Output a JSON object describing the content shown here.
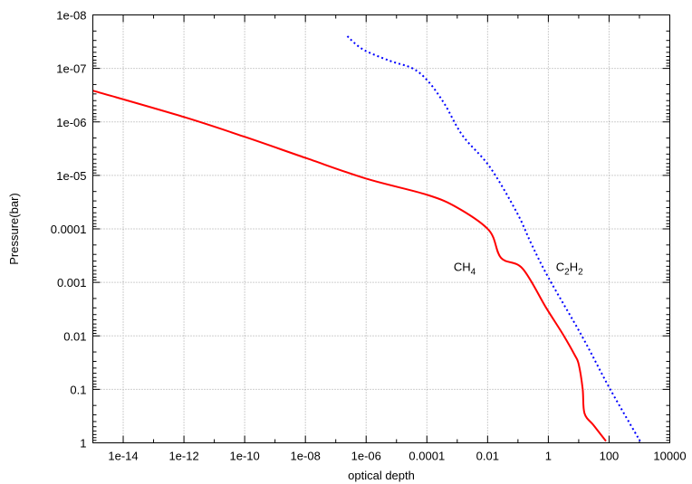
{
  "chart_data": {
    "type": "line",
    "title": "",
    "xlabel": "optical depth",
    "ylabel": "Pressure(bar)",
    "xscale": "log",
    "yscale": "log",
    "xlim": [
      1e-15,
      10000
    ],
    "ylim": [
      1e-08,
      1
    ],
    "y_inverted": true,
    "grid": true,
    "x_ticks": [
      1e-14,
      1e-12,
      1e-10,
      1e-08,
      1e-06,
      0.0001,
      0.01,
      1,
      100,
      10000
    ],
    "x_tick_labels": [
      "1e-14",
      "1e-12",
      "1e-10",
      "1e-08",
      "1e-06",
      "0.0001",
      "0.01",
      "1",
      "100",
      "10000"
    ],
    "y_ticks": [
      1e-08,
      1e-07,
      1e-06,
      1e-05,
      0.0001,
      0.001,
      0.01,
      0.1,
      1
    ],
    "y_tick_labels": [
      "1e-08",
      "1e-07",
      "1e-06",
      "1e-05",
      "0.0001",
      "0.001",
      "0.01",
      "0.1",
      "1"
    ],
    "series": [
      {
        "name": "CH4",
        "color": "#ff0000",
        "style": "solid",
        "x": [
          1e-15,
          1e-12,
          1e-10,
          1e-08,
          1e-06,
          0.0001,
          0.001,
          0.0112,
          0.0275,
          0.141,
          0.85,
          3.0,
          7.4,
          10,
          13.5,
          15.5,
          31,
          79
        ],
        "y": [
          2.6e-07,
          8.1e-07,
          1.9e-06,
          4.7e-06,
          1.15e-05,
          2.3e-05,
          4e-05,
          0.000107,
          0.000347,
          0.00055,
          0.003,
          0.0093,
          0.0229,
          0.034,
          0.098,
          0.28,
          0.47,
          0.93
        ]
      },
      {
        "name": "C2H2",
        "color": "#0000ff",
        "style": "dotted",
        "x": [
          2.4e-07,
          7.8e-07,
          6e-06,
          3.4e-05,
          0.00011,
          0.00038,
          0.0015,
          0.0117,
          0.091,
          0.275,
          1.0,
          12.9,
          107,
          1050
        ],
        "y": [
          2.5e-08,
          4.4e-08,
          7.2e-08,
          1e-07,
          1.74e-07,
          4.6e-07,
          1.8e-06,
          6.9e-06,
          4.9e-05,
          0.00019,
          0.00081,
          0.0102,
          0.098,
          0.93
        ]
      }
    ],
    "annotations": [
      {
        "text": "CH",
        "sub": "4",
        "x": 0.00076,
        "y": 0.0005
      },
      {
        "text": "C",
        "sub": "2",
        "text2": "H",
        "sub2": "2",
        "x": 1.78,
        "y": 0.0005
      }
    ]
  }
}
